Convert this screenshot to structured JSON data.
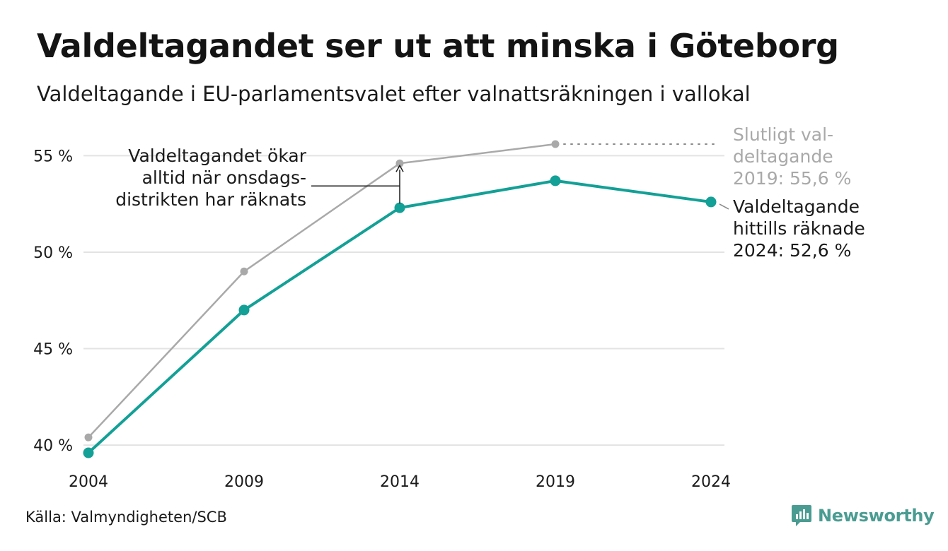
{
  "header": {
    "title": "Valdeltagandet ser ut att minska i Göteborg",
    "subtitle": "Valdeltagande i EU-parlamentsvalet efter valnattsräkningen i vallokal"
  },
  "footer": {
    "source": "Källa: Valmyndigheten/SCB",
    "brand": "Newsworthy"
  },
  "colors": {
    "current": "#13a096",
    "final": "#a9a9a9",
    "grid": "#e3e3e3",
    "brand": "#4a9c92"
  },
  "chart_data": {
    "type": "line",
    "x": [
      "2004",
      "2009",
      "2014",
      "2019",
      "2024"
    ],
    "ylim": [
      39.4,
      56.5
    ],
    "yticks": [
      40,
      45,
      50,
      55
    ],
    "ytick_labels": [
      "40 %",
      "45 %",
      "50 %",
      "55 %"
    ],
    "grid": true,
    "series": [
      {
        "key": "final",
        "values": [
          40.4,
          49.0,
          54.6,
          55.6,
          null
        ]
      },
      {
        "key": "current",
        "values": [
          39.6,
          47.0,
          52.3,
          53.7,
          52.6
        ]
      }
    ],
    "annotations": {
      "increase": [
        "Valdeltagandet ökar",
        "alltid när onsdags-",
        "distrikten har räknats"
      ],
      "final_2019": [
        "Slutligt val-",
        "deltagande",
        "2019: 55,6 %"
      ],
      "current_2024": [
        "Valdeltagande",
        "hittills räknade",
        "2024: 52,6 %"
      ]
    }
  }
}
